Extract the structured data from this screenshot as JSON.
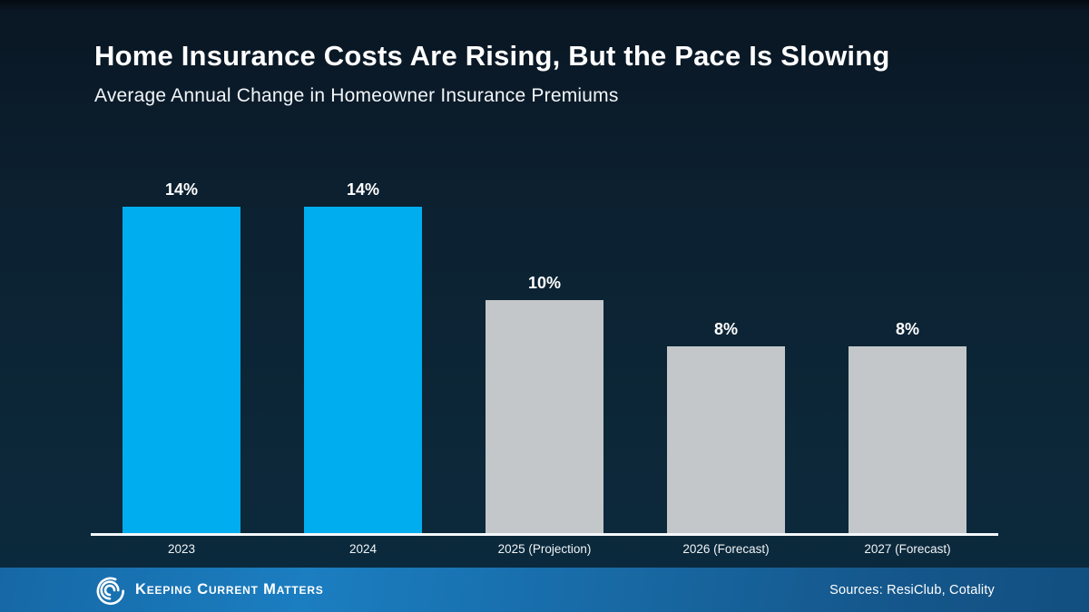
{
  "header": {
    "title": "Home Insurance Costs Are Rising, But the Pace Is Slowing",
    "subtitle": "Average Annual Change in Homeowner Insurance Premiums"
  },
  "chart_data": {
    "type": "bar",
    "title": "Average Annual Change in Homeowner Insurance Premiums",
    "categories": [
      "2023",
      "2024",
      "2025 (Projection)",
      "2026 (Forecast)",
      "2027 (Forecast)"
    ],
    "values": [
      14,
      14,
      10,
      8,
      8
    ],
    "value_labels": [
      "14%",
      "14%",
      "10%",
      "8%",
      "8%"
    ],
    "bar_colors": [
      "#00AEEF",
      "#00AEEF",
      "#C3C7C9",
      "#C3C7C9",
      "#C3C7C9"
    ],
    "xlabel": "",
    "ylabel": "",
    "ylim": [
      0,
      16
    ],
    "grid": false,
    "legend": null,
    "data_labels_position": "above-bar",
    "axis_line_color": "#F4F8FB"
  },
  "footer": {
    "brand": "Keeping Current Matters",
    "sources": "Sources: ResiClub, Cotality"
  },
  "colors": {
    "accent_blue": "#00AEEF",
    "bar_gray": "#C3C7C9",
    "background_top": "#0A1623",
    "background_bottom": "#0B2A3E",
    "footer_blue_left": "#1B7EC1",
    "footer_blue_right": "#124F80",
    "text_white": "#FFFFFF"
  }
}
